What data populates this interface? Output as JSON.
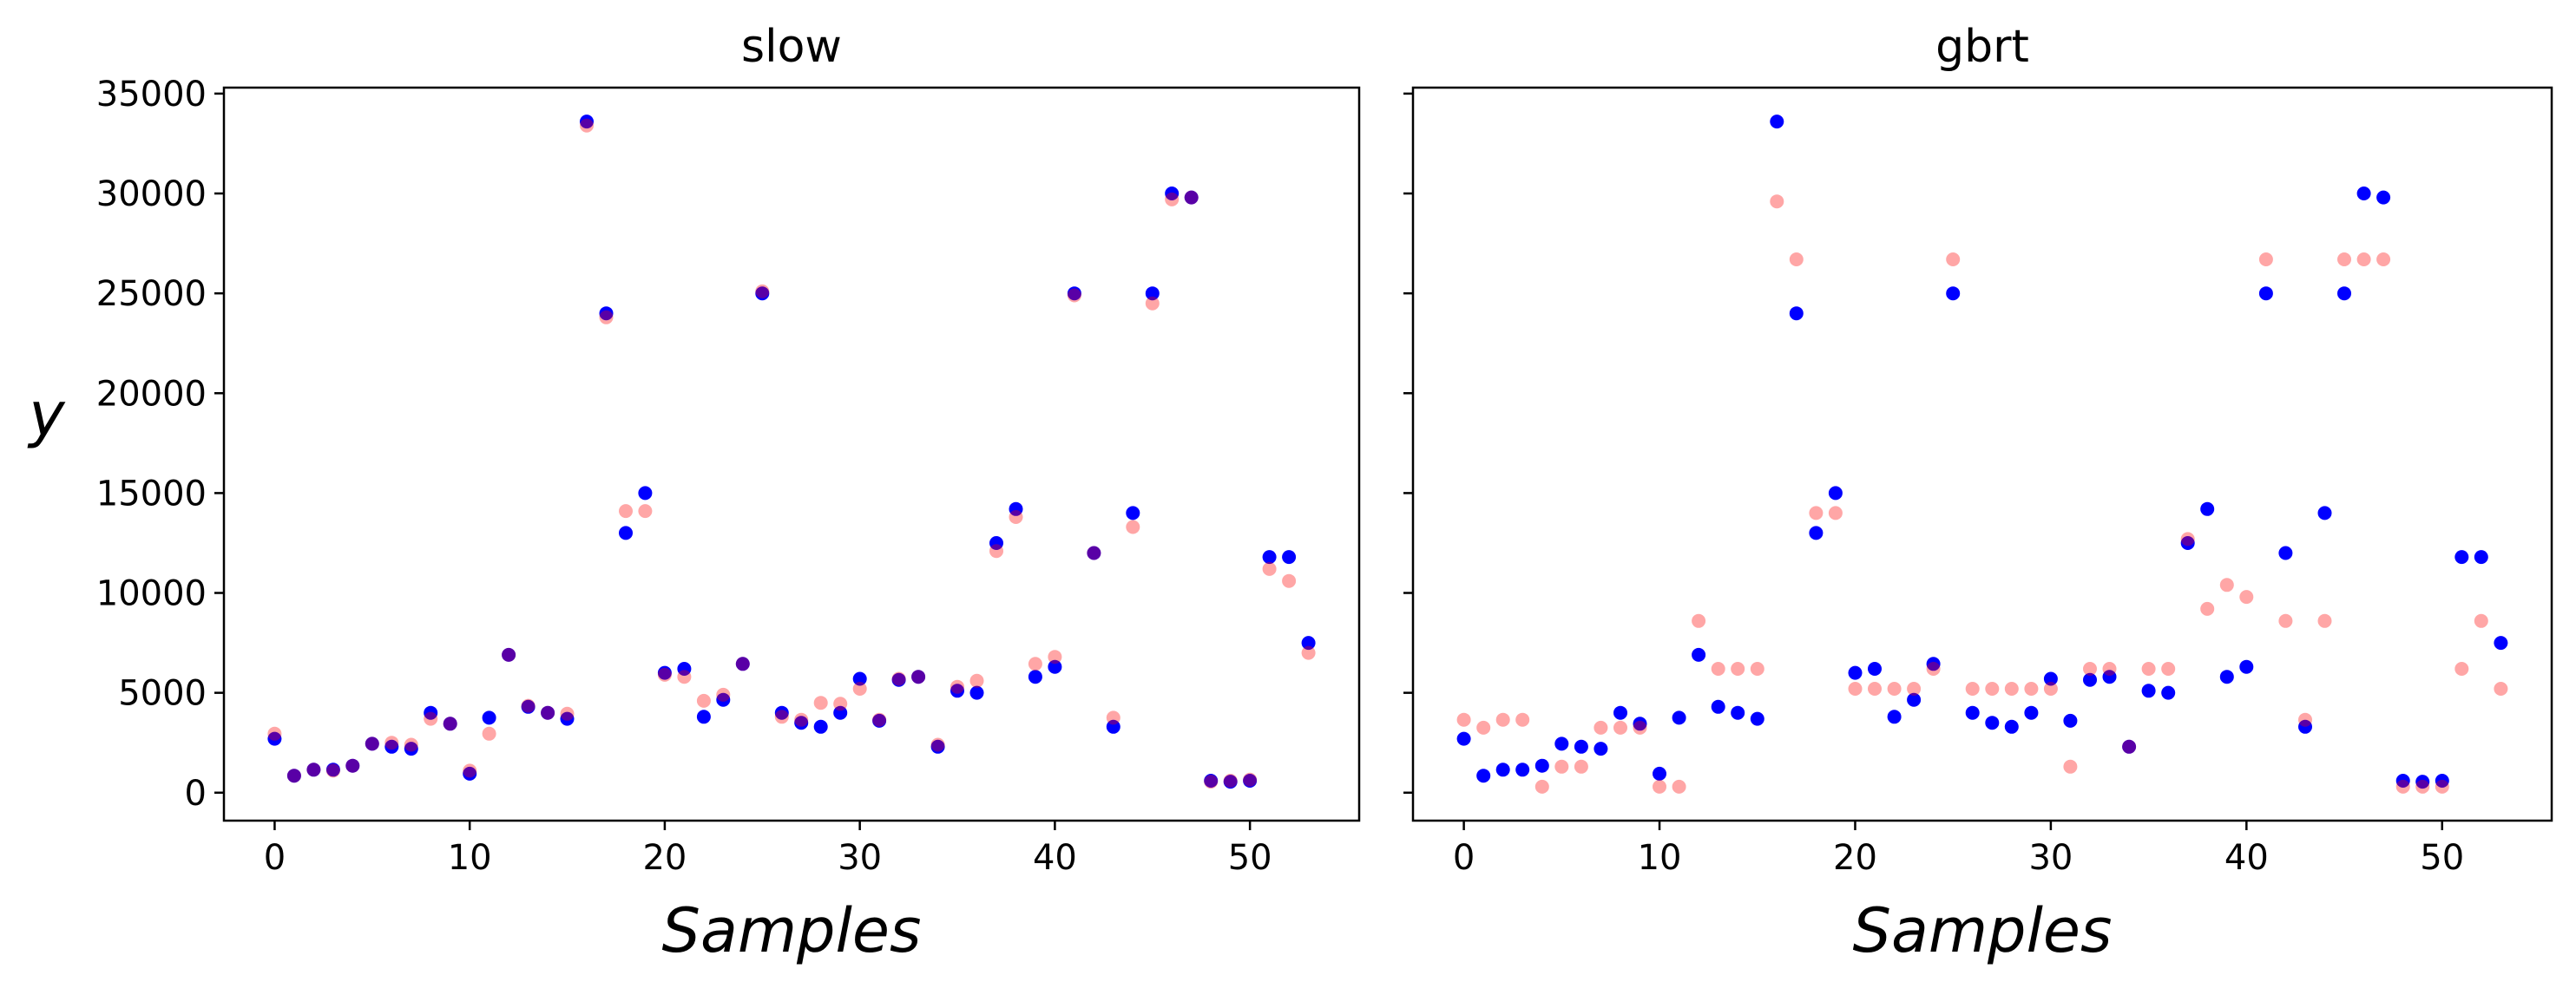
{
  "chart_data": [
    {
      "type": "scatter",
      "title": "slow",
      "xlabel": "Samples",
      "ylabel": "y",
      "xlim": [
        -2.6,
        55.6
      ],
      "ylim": [
        -1400,
        35300
      ],
      "xticks": [
        0,
        10,
        20,
        30,
        40,
        50
      ],
      "yticks": [
        0,
        5000,
        10000,
        15000,
        20000,
        25000,
        30000,
        35000
      ],
      "grid": false,
      "series": [
        {
          "role": "actual",
          "color": "#0000ff",
          "opacity": 1.0,
          "x": [
            0,
            1,
            2,
            3,
            4,
            5,
            6,
            7,
            8,
            9,
            10,
            11,
            12,
            13,
            14,
            15,
            16,
            17,
            18,
            19,
            20,
            21,
            22,
            23,
            24,
            25,
            26,
            27,
            28,
            29,
            30,
            31,
            32,
            33,
            34,
            35,
            36,
            37,
            38,
            39,
            40,
            41,
            42,
            43,
            44,
            45,
            46,
            47,
            48,
            49,
            50,
            51,
            52,
            53
          ],
          "y": [
            2700,
            850,
            1150,
            1150,
            1350,
            2450,
            2300,
            2200,
            4000,
            3450,
            950,
            3750,
            6900,
            4300,
            4000,
            3700,
            33600,
            24000,
            13000,
            15000,
            6000,
            6200,
            3800,
            4650,
            6450,
            25000,
            4000,
            3500,
            3300,
            4000,
            5700,
            3600,
            5650,
            5800,
            2300,
            5100,
            5000,
            12500,
            14200,
            5800,
            6300,
            25000,
            12000,
            3300,
            14000,
            25000,
            30000,
            29800,
            600,
            550,
            600,
            11800,
            11800,
            7500
          ]
        },
        {
          "role": "predicted",
          "color": "#ff0000",
          "opacity": 0.35,
          "x": [
            0,
            1,
            2,
            3,
            4,
            5,
            6,
            7,
            8,
            9,
            10,
            11,
            12,
            13,
            14,
            15,
            16,
            17,
            18,
            19,
            20,
            21,
            22,
            23,
            24,
            25,
            26,
            27,
            28,
            29,
            30,
            31,
            32,
            33,
            34,
            35,
            36,
            37,
            38,
            39,
            40,
            41,
            42,
            43,
            44,
            45,
            46,
            47,
            48,
            49,
            50,
            51,
            52,
            53
          ],
          "y": [
            2950,
            850,
            1150,
            1100,
            1350,
            2450,
            2500,
            2400,
            3700,
            3450,
            1100,
            2950,
            6900,
            4350,
            4000,
            3950,
            33400,
            23800,
            14100,
            14100,
            5900,
            5800,
            4600,
            4900,
            6450,
            25100,
            3800,
            3650,
            4500,
            4450,
            5200,
            3650,
            5700,
            5800,
            2400,
            5300,
            5600,
            12100,
            13800,
            6450,
            6800,
            24900,
            12000,
            3750,
            13300,
            24500,
            29700,
            29800,
            550,
            600,
            650,
            11200,
            10600,
            7000
          ]
        }
      ]
    },
    {
      "type": "scatter",
      "title": "gbrt",
      "xlabel": "Samples",
      "ylabel": "",
      "xlim": [
        -2.6,
        55.6
      ],
      "ylim": [
        -1400,
        35300
      ],
      "xticks": [
        0,
        10,
        20,
        30,
        40,
        50
      ],
      "yticks": [
        0,
        5000,
        10000,
        15000,
        20000,
        25000,
        30000,
        35000
      ],
      "grid": false,
      "series": [
        {
          "role": "actual",
          "color": "#0000ff",
          "opacity": 1.0,
          "x": [
            0,
            1,
            2,
            3,
            4,
            5,
            6,
            7,
            8,
            9,
            10,
            11,
            12,
            13,
            14,
            15,
            16,
            17,
            18,
            19,
            20,
            21,
            22,
            23,
            24,
            25,
            26,
            27,
            28,
            29,
            30,
            31,
            32,
            33,
            34,
            35,
            36,
            37,
            38,
            39,
            40,
            41,
            42,
            43,
            44,
            45,
            46,
            47,
            48,
            49,
            50,
            51,
            52,
            53
          ],
          "y": [
            2700,
            850,
            1150,
            1150,
            1350,
            2450,
            2300,
            2200,
            4000,
            3450,
            950,
            3750,
            6900,
            4300,
            4000,
            3700,
            33600,
            24000,
            13000,
            15000,
            6000,
            6200,
            3800,
            4650,
            6450,
            25000,
            4000,
            3500,
            3300,
            4000,
            5700,
            3600,
            5650,
            5800,
            2300,
            5100,
            5000,
            12500,
            14200,
            5800,
            6300,
            25000,
            12000,
            3300,
            14000,
            25000,
            30000,
            29800,
            600,
            550,
            600,
            11800,
            11800,
            7500
          ]
        },
        {
          "role": "predicted",
          "color": "#ff0000",
          "opacity": 0.35,
          "x": [
            0,
            1,
            2,
            3,
            4,
            5,
            6,
            7,
            8,
            9,
            10,
            11,
            12,
            13,
            14,
            15,
            16,
            17,
            18,
            19,
            20,
            21,
            22,
            23,
            24,
            25,
            26,
            27,
            28,
            29,
            30,
            31,
            32,
            33,
            34,
            35,
            36,
            37,
            38,
            39,
            40,
            41,
            42,
            43,
            44,
            45,
            46,
            47,
            48,
            49,
            50,
            51,
            52,
            53
          ],
          "y": [
            3650,
            3250,
            3650,
            3650,
            300,
            1300,
            1300,
            3250,
            3250,
            3250,
            300,
            300,
            8600,
            6200,
            6200,
            6200,
            29600,
            26700,
            14000,
            14000,
            5200,
            5200,
            5200,
            5200,
            6200,
            26700,
            5200,
            5200,
            5200,
            5200,
            5200,
            1300,
            6200,
            6200,
            2300,
            6200,
            6200,
            12700,
            9200,
            10400,
            9800,
            26700,
            8600,
            3650,
            8600,
            26700,
            26700,
            26700,
            300,
            300,
            300,
            6200,
            8600,
            5200
          ]
        }
      ]
    }
  ]
}
